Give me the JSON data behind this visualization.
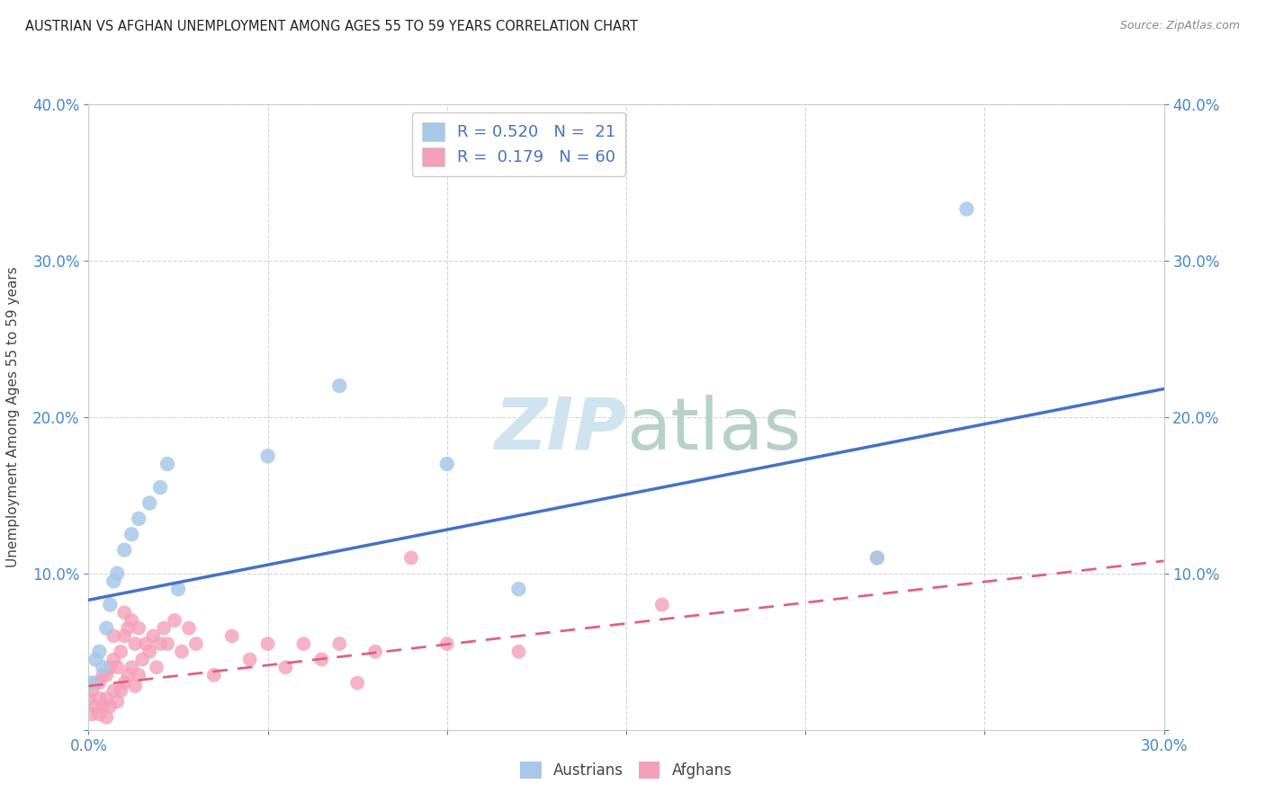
{
  "title": "AUSTRIAN VS AFGHAN UNEMPLOYMENT AMONG AGES 55 TO 59 YEARS CORRELATION CHART",
  "source": "Source: ZipAtlas.com",
  "ylabel": "Unemployment Among Ages 55 to 59 years",
  "xlim": [
    0.0,
    0.3
  ],
  "ylim": [
    0.0,
    0.4
  ],
  "xticks": [
    0.0,
    0.05,
    0.1,
    0.15,
    0.2,
    0.25,
    0.3
  ],
  "yticks": [
    0.0,
    0.1,
    0.2,
    0.3,
    0.4
  ],
  "legend_R_austrians": "0.520",
  "legend_N_austrians": "21",
  "legend_R_afghans": "0.179",
  "legend_N_afghans": "60",
  "austrians_color": "#a8c8e8",
  "afghans_color": "#f4a0b8",
  "austrians_line_color": "#4472c4",
  "afghans_line_color": "#e06080",
  "watermark_color": "#d0e4f0",
  "background_color": "#ffffff",
  "grid_color": "#d0d0d0",
  "austrians_x": [
    0.001,
    0.002,
    0.003,
    0.004,
    0.005,
    0.006,
    0.007,
    0.008,
    0.01,
    0.012,
    0.014,
    0.017,
    0.02,
    0.022,
    0.025,
    0.05,
    0.07,
    0.1,
    0.12,
    0.22,
    0.245
  ],
  "austrians_y": [
    0.03,
    0.045,
    0.05,
    0.04,
    0.065,
    0.08,
    0.095,
    0.1,
    0.115,
    0.125,
    0.135,
    0.145,
    0.155,
    0.17,
    0.09,
    0.175,
    0.22,
    0.17,
    0.09,
    0.11,
    0.333
  ],
  "afghans_x": [
    0.0,
    0.001,
    0.001,
    0.002,
    0.002,
    0.003,
    0.003,
    0.003,
    0.004,
    0.004,
    0.005,
    0.005,
    0.005,
    0.006,
    0.006,
    0.007,
    0.007,
    0.007,
    0.008,
    0.008,
    0.009,
    0.009,
    0.01,
    0.01,
    0.01,
    0.011,
    0.011,
    0.012,
    0.012,
    0.013,
    0.013,
    0.014,
    0.014,
    0.015,
    0.016,
    0.017,
    0.018,
    0.019,
    0.02,
    0.021,
    0.022,
    0.024,
    0.026,
    0.028,
    0.03,
    0.035,
    0.04,
    0.045,
    0.05,
    0.055,
    0.06,
    0.065,
    0.07,
    0.075,
    0.08,
    0.09,
    0.1,
    0.12,
    0.16,
    0.22
  ],
  "afghans_y": [
    0.02,
    0.01,
    0.025,
    0.015,
    0.03,
    0.01,
    0.02,
    0.03,
    0.015,
    0.035,
    0.008,
    0.02,
    0.035,
    0.015,
    0.04,
    0.025,
    0.045,
    0.06,
    0.018,
    0.04,
    0.025,
    0.05,
    0.03,
    0.06,
    0.075,
    0.035,
    0.065,
    0.04,
    0.07,
    0.028,
    0.055,
    0.035,
    0.065,
    0.045,
    0.055,
    0.05,
    0.06,
    0.04,
    0.055,
    0.065,
    0.055,
    0.07,
    0.05,
    0.065,
    0.055,
    0.035,
    0.06,
    0.045,
    0.055,
    0.04,
    0.055,
    0.045,
    0.055,
    0.03,
    0.05,
    0.11,
    0.055,
    0.05,
    0.08,
    0.11
  ],
  "aus_line_x0": 0.0,
  "aus_line_y0": 0.083,
  "aus_line_x1": 0.3,
  "aus_line_y1": 0.218,
  "afg_line_x0": 0.0,
  "afg_line_y0": 0.028,
  "afg_line_x1": 0.3,
  "afg_line_y1": 0.108
}
